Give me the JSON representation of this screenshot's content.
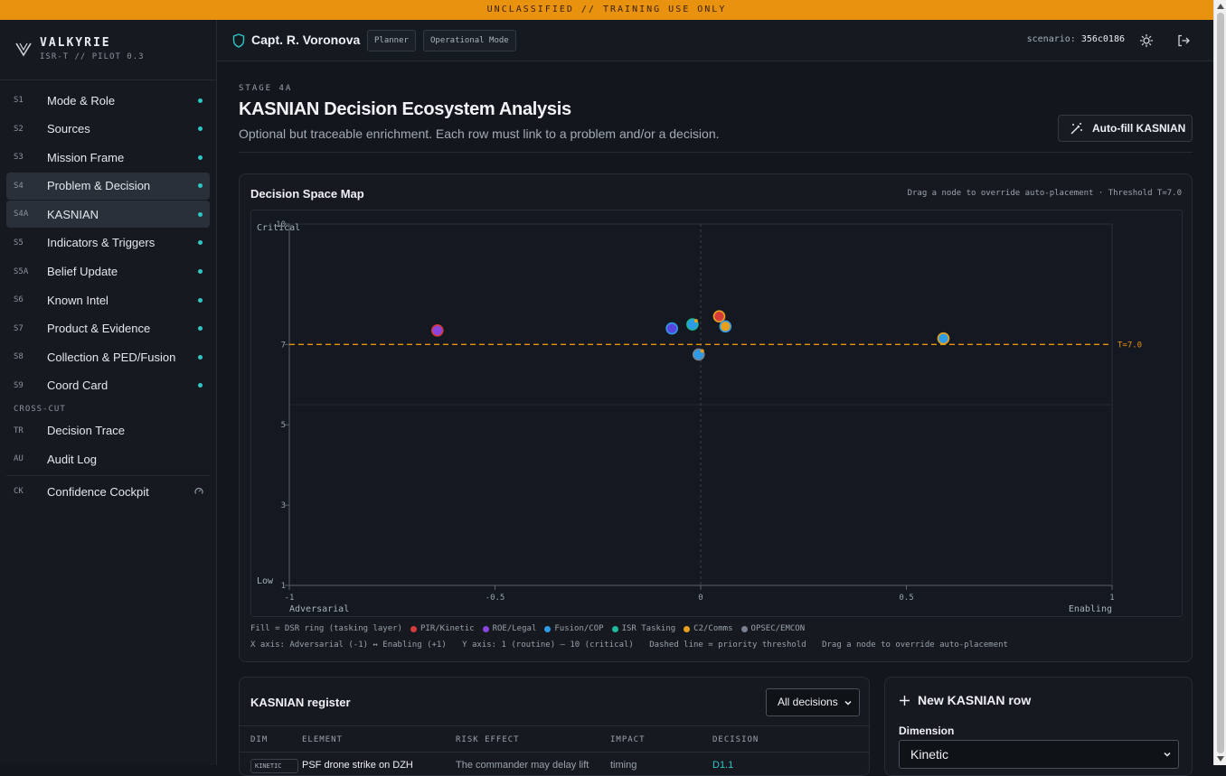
{
  "banner": "UNCLASSIFIED // TRAINING USE ONLY",
  "brand": {
    "name": "VALKYRIE",
    "sub": "ISR-T // PILOT 0.3"
  },
  "nav": [
    {
      "code": "S1",
      "label": "Mode & Role"
    },
    {
      "code": "S2",
      "label": "Sources"
    },
    {
      "code": "S3",
      "label": "Mission Frame"
    },
    {
      "code": "S4",
      "label": "Problem & Decision"
    },
    {
      "code": "S4A",
      "label": "KASNIAN"
    },
    {
      "code": "S5",
      "label": "Indicators & Triggers"
    },
    {
      "code": "S5A",
      "label": "Belief Update"
    },
    {
      "code": "S6",
      "label": "Known Intel"
    },
    {
      "code": "S7",
      "label": "Product & Evidence"
    },
    {
      "code": "S8",
      "label": "Collection & PED/Fusion"
    },
    {
      "code": "S9",
      "label": "Coord Card"
    }
  ],
  "cross_cut": {
    "heading": "CROSS-CUT",
    "items": [
      {
        "code": "TR",
        "label": "Decision Trace"
      },
      {
        "code": "AU",
        "label": "Audit Log"
      }
    ]
  },
  "cockpit": {
    "code": "CK",
    "label": "Confidence Cockpit"
  },
  "topbar": {
    "user": "Capt. R. Voronova",
    "role": "Planner",
    "mode": "Operational Mode",
    "scenario_label": "scenario:",
    "scenario_id": "356c0186"
  },
  "page": {
    "stage": "STAGE 4A",
    "title": "KASNIAN Decision Ecosystem Analysis",
    "subtitle": "Optional but traceable enrichment. Each row must link to a problem and/or a decision.",
    "autofill_label": "Auto-fill KASNIAN"
  },
  "map": {
    "title": "Decision Space Map",
    "hint": "Drag a node to override auto-placement · Threshold T=7.0",
    "legend_title": "Fill = DSR ring (tasking layer)",
    "legend": [
      {
        "name": "PIR/Kinetic",
        "color": "#d63b3b"
      },
      {
        "name": "ROE/Legal",
        "color": "#8a44e0"
      },
      {
        "name": "Fusion/COP",
        "color": "#2e9be6"
      },
      {
        "name": "ISR Tasking",
        "color": "#1fb89a"
      },
      {
        "name": "C2/Comms",
        "color": "#e8a01c"
      },
      {
        "name": "OPSEC/EMCON",
        "color": "#7a8290"
      }
    ],
    "notes": [
      "X axis: Adversarial (-1) ↔ Enabling (+1)",
      "Y axis: 1 (routine) — 10 (critical)",
      "Dashed line = priority threshold",
      "Drag a node to override auto-placement"
    ]
  },
  "chart_data": {
    "type": "scatter",
    "xlim": [
      -1,
      1
    ],
    "ylim": [
      1,
      10
    ],
    "x_ticks": [
      "-1",
      "-0.5",
      "0",
      "0.5",
      "1"
    ],
    "y_ticks": [
      "1",
      "3",
      "5",
      "7",
      "10"
    ],
    "x_left_label": "Adversarial",
    "x_right_label": "Enabling",
    "y_top_label": "Critical",
    "y_bottom_label": "Low",
    "threshold": 7.0,
    "threshold_label": "T=7.0",
    "points": [
      {
        "x": -0.64,
        "y": 7.35,
        "color": "#8a44e0",
        "ring": "#d63b3b"
      },
      {
        "x": -0.07,
        "y": 7.4,
        "color": "#5a44e0",
        "ring": "#2e9be6"
      },
      {
        "x": -0.02,
        "y": 7.5,
        "color": "#2e9be6",
        "ring": "#1fb89a",
        "accent": "#e8a01c"
      },
      {
        "x": 0.045,
        "y": 7.7,
        "color": "#d63b3b",
        "ring": "#e8a01c"
      },
      {
        "x": 0.06,
        "y": 7.45,
        "color": "#e8a01c",
        "ring": "#2e9be6"
      },
      {
        "x": 0.59,
        "y": 7.15,
        "color": "#2e9be6",
        "ring": "#e8a01c"
      },
      {
        "x": -0.005,
        "y": 6.75,
        "color": "#2e9be6",
        "ring": "#7a8290",
        "accent": "#e8a01c"
      }
    ]
  },
  "register": {
    "title": "KASNIAN register",
    "filter_value": "All decisions",
    "columns": [
      "DIM",
      "ELEMENT",
      "RISK EFFECT",
      "IMPACT",
      "DECISION"
    ],
    "first_row": {
      "dim": "KINETIC",
      "element": "PSF drone strike on DZH",
      "risk": "The commander may delay lift",
      "impact": "timing",
      "decision": "D1.1"
    }
  },
  "new_row": {
    "title": "New KASNIAN row",
    "dimension_label": "Dimension",
    "dimension_value": "Kinetic"
  }
}
